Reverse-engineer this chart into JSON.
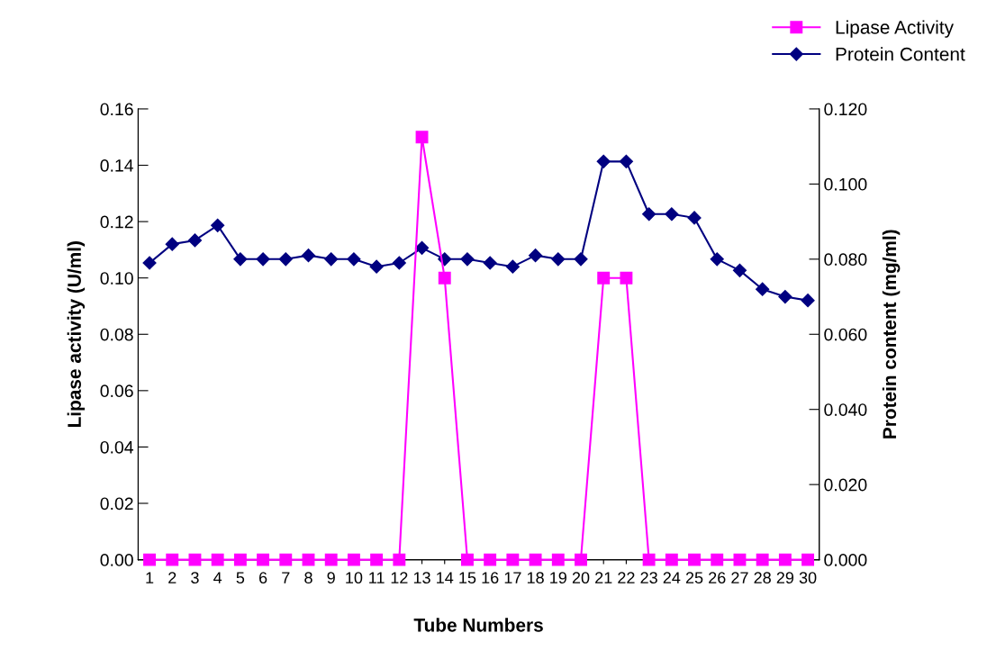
{
  "chart_data": {
    "type": "line",
    "xlabel": "Tube Numbers",
    "ylabel": "Lipase activity (U/ml)",
    "y2label": "Protein content (mg/ml)",
    "categories": [
      "1",
      "2",
      "3",
      "4",
      "5",
      "6",
      "7",
      "8",
      "9",
      "10",
      "11",
      "12",
      "13",
      "14",
      "15",
      "16",
      "17",
      "18",
      "19",
      "20",
      "21",
      "22",
      "23",
      "24",
      "25",
      "26",
      "27",
      "28",
      "29",
      "30"
    ],
    "series": [
      {
        "name": "Lipase Activity",
        "color": "#ff00ff",
        "marker": "square",
        "values": [
          0,
          0,
          0,
          0,
          0,
          0,
          0,
          0,
          0,
          0,
          0,
          0,
          0.15,
          0.1,
          0,
          0,
          0,
          0,
          0,
          0,
          0.1,
          0.1,
          0,
          0,
          0,
          0,
          0,
          0,
          0,
          0
        ]
      },
      {
        "name": "Protein Content",
        "color": "#000080",
        "marker": "diamond",
        "axis": "y2",
        "values": [
          0.079,
          0.084,
          0.085,
          0.089,
          0.08,
          0.08,
          0.08,
          0.081,
          0.08,
          0.08,
          0.078,
          0.079,
          0.083,
          0.08,
          0.08,
          0.079,
          0.078,
          0.081,
          0.08,
          0.08,
          0.106,
          0.106,
          0.092,
          0.092,
          0.091,
          0.08,
          0.077,
          0.072,
          0.07,
          0.069
        ]
      }
    ],
    "ylim": [
      0,
      0.16
    ],
    "yticks": [
      {
        "value": 0,
        "label": "0.00"
      },
      {
        "value": 0.02,
        "label": "0.02"
      },
      {
        "value": 0.04,
        "label": "0.04"
      },
      {
        "value": 0.06,
        "label": "0.06"
      },
      {
        "value": 0.08,
        "label": "0.08"
      },
      {
        "value": 0.1,
        "label": "0.10"
      },
      {
        "value": 0.12,
        "label": "0.12"
      },
      {
        "value": 0.14,
        "label": "0.14"
      },
      {
        "value": 0.16,
        "label": "0.16"
      }
    ],
    "y2lim": [
      0,
      0.12
    ],
    "y2ticks": [
      {
        "value": 0,
        "label": "0.000"
      },
      {
        "value": 0.02,
        "label": "0.020"
      },
      {
        "value": 0.04,
        "label": "0.040"
      },
      {
        "value": 0.06,
        "label": "0.060"
      },
      {
        "value": 0.08,
        "label": "0.080"
      },
      {
        "value": 0.1,
        "label": "0.100"
      },
      {
        "value": 0.12,
        "label": "0.120"
      }
    ],
    "grid": false,
    "legend": "top right",
    "line_style": "solid"
  }
}
